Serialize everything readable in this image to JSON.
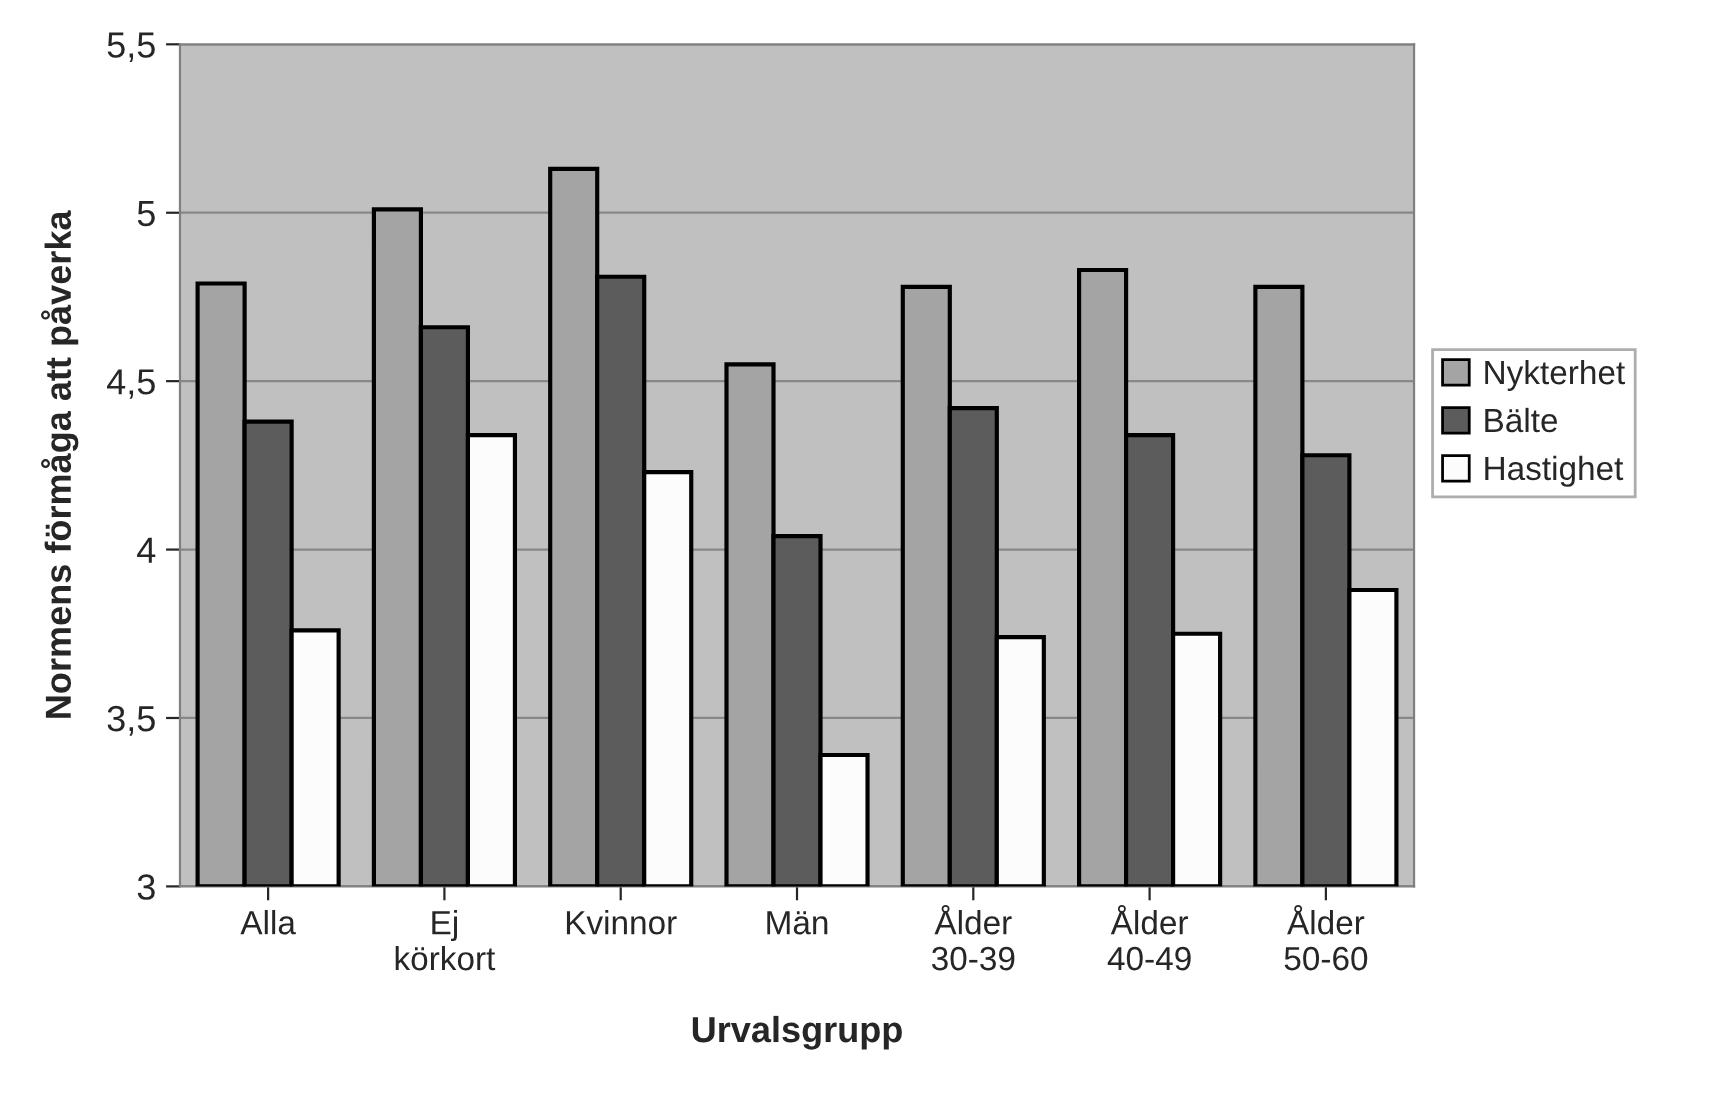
{
  "chart_data": {
    "type": "bar",
    "xlabel": "Urvalsgrupp",
    "ylabel": "Normens förmåga att påverka",
    "categories": [
      "Alla",
      "Ej\nkörkort",
      "Kvinnor",
      "Män",
      "Ålder\n30-39",
      "Ålder\n40-49",
      "Ålder\n50-60"
    ],
    "series": [
      {
        "name": "Nykterhet",
        "color": "#a4a4a4",
        "values": [
          4.79,
          5.01,
          5.13,
          4.55,
          4.78,
          4.83,
          4.78
        ]
      },
      {
        "name": "Bälte",
        "color": "#5c5c5c",
        "values": [
          4.38,
          4.66,
          4.81,
          4.04,
          4.42,
          4.34,
          4.28
        ]
      },
      {
        "name": "Hastighet",
        "color": "#fcfcfc",
        "values": [
          3.76,
          4.34,
          4.23,
          3.39,
          3.74,
          3.75,
          3.88
        ]
      }
    ],
    "ylim": [
      3,
      5.5
    ],
    "yticks": [
      {
        "value": 3,
        "label": "3"
      },
      {
        "value": 3.5,
        "label": "3,5"
      },
      {
        "value": 4,
        "label": "4"
      },
      {
        "value": 4.5,
        "label": "4,5"
      },
      {
        "value": 5,
        "label": "5"
      },
      {
        "value": 5.5,
        "label": "5,5"
      }
    ],
    "grid": "y",
    "legend": "right"
  }
}
